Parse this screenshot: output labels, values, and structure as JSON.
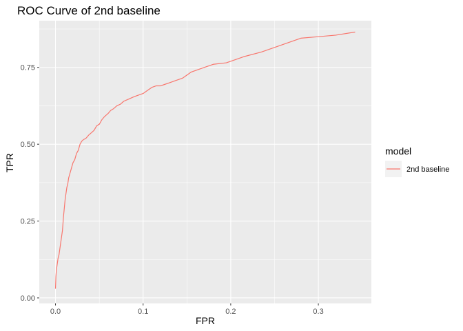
{
  "chart_data": {
    "type": "line",
    "title": "ROC Curve of 2nd baseline",
    "xlabel": "FPR",
    "ylabel": "TPR",
    "xlim": [
      -0.0185,
      0.3605
    ],
    "ylim": [
      -0.018,
      0.902
    ],
    "x_ticks": [
      0.0,
      0.1,
      0.2,
      0.3
    ],
    "x_tick_labels": [
      "0.0",
      "0.1",
      "0.2",
      "0.3"
    ],
    "y_ticks": [
      0.0,
      0.25,
      0.5,
      0.75
    ],
    "y_tick_labels": [
      "0.00",
      "0.25",
      "0.50",
      "0.75"
    ],
    "grid": true,
    "legend": {
      "title": "model",
      "position": "right"
    },
    "series": [
      {
        "name": "2nd baseline",
        "color": "#F8766D",
        "x": [
          0.0,
          0.0005,
          0.001,
          0.002,
          0.003,
          0.004,
          0.005,
          0.006,
          0.007,
          0.008,
          0.009,
          0.01,
          0.011,
          0.012,
          0.013,
          0.014,
          0.015,
          0.016,
          0.017,
          0.018,
          0.019,
          0.02,
          0.022,
          0.024,
          0.026,
          0.028,
          0.03,
          0.032,
          0.035,
          0.038,
          0.04,
          0.044,
          0.047,
          0.05,
          0.053,
          0.056,
          0.058,
          0.06,
          0.063,
          0.066,
          0.07,
          0.074,
          0.078,
          0.082,
          0.086,
          0.09,
          0.095,
          0.1,
          0.105,
          0.11,
          0.115,
          0.12,
          0.125,
          0.13,
          0.135,
          0.14,
          0.145,
          0.15,
          0.155,
          0.16,
          0.17,
          0.18,
          0.195,
          0.215,
          0.235,
          0.255,
          0.28,
          0.3,
          0.32,
          0.342
        ],
        "y": [
          0.03,
          0.07,
          0.09,
          0.11,
          0.13,
          0.14,
          0.16,
          0.18,
          0.2,
          0.22,
          0.26,
          0.29,
          0.32,
          0.34,
          0.36,
          0.37,
          0.39,
          0.4,
          0.41,
          0.42,
          0.43,
          0.44,
          0.45,
          0.47,
          0.48,
          0.5,
          0.51,
          0.515,
          0.52,
          0.53,
          0.535,
          0.545,
          0.56,
          0.565,
          0.58,
          0.59,
          0.595,
          0.6,
          0.61,
          0.615,
          0.625,
          0.63,
          0.64,
          0.645,
          0.65,
          0.655,
          0.66,
          0.665,
          0.675,
          0.685,
          0.69,
          0.69,
          0.695,
          0.7,
          0.705,
          0.71,
          0.715,
          0.725,
          0.735,
          0.74,
          0.75,
          0.76,
          0.765,
          0.785,
          0.8,
          0.82,
          0.845,
          0.85,
          0.855,
          0.865
        ]
      }
    ]
  }
}
